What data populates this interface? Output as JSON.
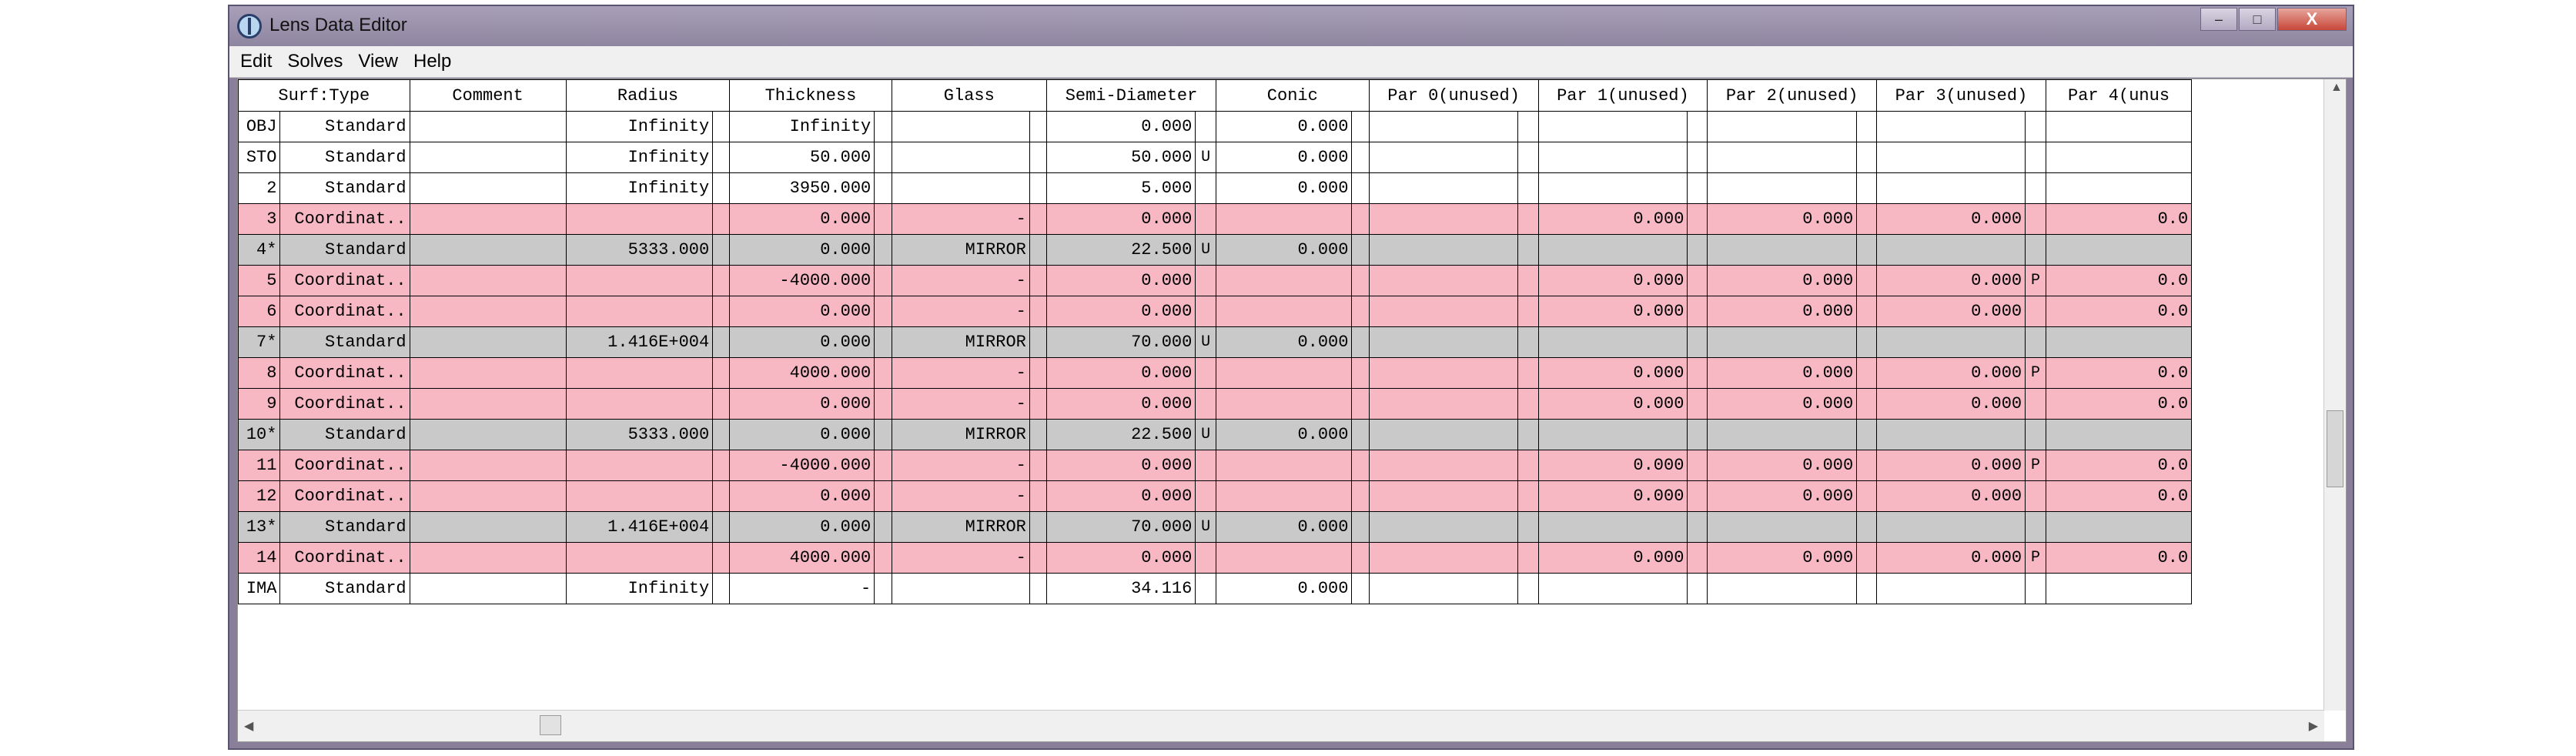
{
  "window": {
    "title": "Lens Data Editor",
    "buttons": {
      "minimize": "–",
      "maximize": "□",
      "close": "X"
    }
  },
  "menu": [
    "Edit",
    "Solves",
    "View",
    "Help"
  ],
  "columns": [
    "Surf:Type",
    "Comment",
    "Radius",
    "Thickness",
    "Glass",
    "Semi-Diameter",
    "Conic",
    "Par 0(unused)",
    "Par 1(unused)",
    "Par 2(unused)",
    "Par 3(unused)",
    "Par 4(unus"
  ],
  "rows": [
    {
      "surf": "OBJ",
      "type": "Standard",
      "comment": "",
      "radius": "Infinity",
      "thickness": "Infinity",
      "glass": "",
      "semi": "0.000",
      "semi_solve": "",
      "conic": "0.000",
      "par0": "",
      "par1": "",
      "par2": "",
      "par3": "",
      "par3_solve": "",
      "par4": "",
      "style": "white"
    },
    {
      "surf": "STO",
      "type": "Standard",
      "comment": "",
      "radius": "Infinity",
      "thickness": "50.000",
      "glass": "",
      "semi": "50.000",
      "semi_solve": "U",
      "conic": "0.000",
      "par0": "",
      "par1": "",
      "par2": "",
      "par3": "",
      "par3_solve": "",
      "par4": "",
      "style": "white"
    },
    {
      "surf": "2",
      "type": "Standard",
      "comment": "",
      "radius": "Infinity",
      "thickness": "3950.000",
      "glass": "",
      "semi": "5.000",
      "semi_solve": "",
      "conic": "0.000",
      "par0": "",
      "par1": "",
      "par2": "",
      "par3": "",
      "par3_solve": "",
      "par4": "",
      "style": "white"
    },
    {
      "surf": "3",
      "type": "Coordinat..",
      "comment": "",
      "radius": "",
      "thickness": "0.000",
      "glass": "-",
      "semi": "0.000",
      "semi_solve": "",
      "conic": "",
      "par0": "",
      "par1": "0.000",
      "par2": "0.000",
      "par3": "0.000",
      "par3_solve": "",
      "par4": "0.0",
      "style": "pink"
    },
    {
      "surf": "4*",
      "type": "Standard",
      "comment": "",
      "radius": "5333.000",
      "thickness": "0.000",
      "glass": "MIRROR",
      "semi": "22.500",
      "semi_solve": "U",
      "conic": "0.000",
      "par0": "",
      "par1": "",
      "par2": "",
      "par3": "",
      "par3_solve": "",
      "par4": "",
      "style": "gray"
    },
    {
      "surf": "5",
      "type": "Coordinat..",
      "comment": "",
      "radius": "",
      "thickness": "-4000.000",
      "glass": "-",
      "semi": "0.000",
      "semi_solve": "",
      "conic": "",
      "par0": "",
      "par1": "0.000",
      "par2": "0.000",
      "par3": "0.000",
      "par3_solve": "P",
      "par4": "0.0",
      "style": "pink"
    },
    {
      "surf": "6",
      "type": "Coordinat..",
      "comment": "",
      "radius": "",
      "thickness": "0.000",
      "glass": "-",
      "semi": "0.000",
      "semi_solve": "",
      "conic": "",
      "par0": "",
      "par1": "0.000",
      "par2": "0.000",
      "par3": "0.000",
      "par3_solve": "",
      "par4": "0.0",
      "style": "pink"
    },
    {
      "surf": "7*",
      "type": "Standard",
      "comment": "",
      "radius": "1.416E+004",
      "thickness": "0.000",
      "glass": "MIRROR",
      "semi": "70.000",
      "semi_solve": "U",
      "conic": "0.000",
      "par0": "",
      "par1": "",
      "par2": "",
      "par3": "",
      "par3_solve": "",
      "par4": "",
      "style": "gray"
    },
    {
      "surf": "8",
      "type": "Coordinat..",
      "comment": "",
      "radius": "",
      "thickness": "4000.000",
      "glass": "-",
      "semi": "0.000",
      "semi_solve": "",
      "conic": "",
      "par0": "",
      "par1": "0.000",
      "par2": "0.000",
      "par3": "0.000",
      "par3_solve": "P",
      "par4": "0.0",
      "style": "pink"
    },
    {
      "surf": "9",
      "type": "Coordinat..",
      "comment": "",
      "radius": "",
      "thickness": "0.000",
      "glass": "-",
      "semi": "0.000",
      "semi_solve": "",
      "conic": "",
      "par0": "",
      "par1": "0.000",
      "par2": "0.000",
      "par3": "0.000",
      "par3_solve": "",
      "par4": "0.0",
      "style": "pink"
    },
    {
      "surf": "10*",
      "type": "Standard",
      "comment": "",
      "radius": "5333.000",
      "thickness": "0.000",
      "glass": "MIRROR",
      "semi": "22.500",
      "semi_solve": "U",
      "conic": "0.000",
      "par0": "",
      "par1": "",
      "par2": "",
      "par3": "",
      "par3_solve": "",
      "par4": "",
      "style": "gray"
    },
    {
      "surf": "11",
      "type": "Coordinat..",
      "comment": "",
      "radius": "",
      "thickness": "-4000.000",
      "glass": "-",
      "semi": "0.000",
      "semi_solve": "",
      "conic": "",
      "par0": "",
      "par1": "0.000",
      "par2": "0.000",
      "par3": "0.000",
      "par3_solve": "P",
      "par4": "0.0",
      "style": "pink"
    },
    {
      "surf": "12",
      "type": "Coordinat..",
      "comment": "",
      "radius": "",
      "thickness": "0.000",
      "glass": "-",
      "semi": "0.000",
      "semi_solve": "",
      "conic": "",
      "par0": "",
      "par1": "0.000",
      "par2": "0.000",
      "par3": "0.000",
      "par3_solve": "",
      "par4": "0.0",
      "style": "pink"
    },
    {
      "surf": "13*",
      "type": "Standard",
      "comment": "",
      "radius": "1.416E+004",
      "thickness": "0.000",
      "glass": "MIRROR",
      "semi": "70.000",
      "semi_solve": "U",
      "conic": "0.000",
      "par0": "",
      "par1": "",
      "par2": "",
      "par3": "",
      "par3_solve": "",
      "par4": "",
      "style": "gray"
    },
    {
      "surf": "14",
      "type": "Coordinat..",
      "comment": "",
      "radius": "",
      "thickness": "4000.000",
      "glass": "-",
      "semi": "0.000",
      "semi_solve": "",
      "conic": "",
      "par0": "",
      "par1": "0.000",
      "par2": "0.000",
      "par3": "0.000",
      "par3_solve": "P",
      "par4": "0.0",
      "style": "pink"
    },
    {
      "surf": "IMA",
      "type": "Standard",
      "comment": "",
      "radius": "Infinity",
      "thickness": "-",
      "glass": "",
      "semi": "34.116",
      "semi_solve": "",
      "conic": "0.000",
      "par0": "",
      "par1": "",
      "par2": "",
      "par3": "",
      "par3_solve": "",
      "par4": "",
      "style": "white"
    }
  ],
  "colors": {
    "pink_row": "#f7b8c4",
    "gray_row": "#c9c9c9",
    "title_bar": "#8e85a0"
  },
  "icons": [
    "lens-app-icon",
    "minimize-icon",
    "maximize-icon",
    "close-icon",
    "scroll-up-arrow-icon",
    "scroll-left-arrow-icon",
    "scroll-right-arrow-icon"
  ]
}
